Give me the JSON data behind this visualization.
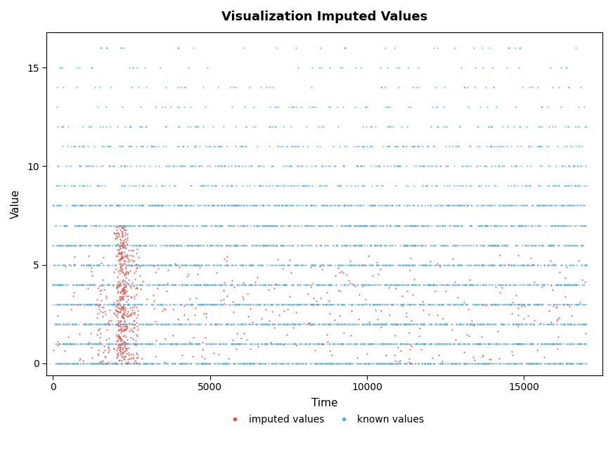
{
  "title": "Visualization Imputed Values",
  "xlabel": "Time",
  "ylabel": "Value",
  "xlim": [
    -200,
    17500
  ],
  "ylim": [
    -0.6,
    16.8
  ],
  "xticks": [
    0,
    5000,
    10000,
    15000
  ],
  "yticks": [
    0,
    5,
    10,
    15
  ],
  "known_color": "#5BADD6",
  "imputed_color": "#D9534F",
  "background_color": "#ffffff",
  "legend_labels": [
    "imputed values",
    "known values"
  ],
  "title_fontsize": 13,
  "axis_label_fontsize": 11,
  "tick_fontsize": 10,
  "marker_size_known": 2.5,
  "marker_size_imputed": 2.5,
  "seed": 42,
  "dense_counts": {
    "0": 700,
    "1": 650,
    "2": 620,
    "3": 600,
    "4": 550,
    "5": 530,
    "6": 520,
    "7": 510,
    "8": 480,
    "9": 200,
    "10": 220,
    "11": 180,
    "12": 100,
    "13": 60,
    "14": 50,
    "15": 40,
    "16": 30
  }
}
